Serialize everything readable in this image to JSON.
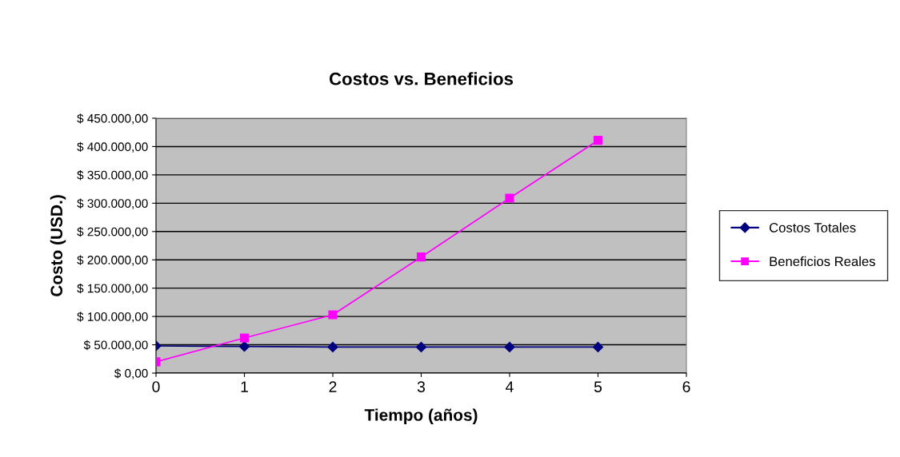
{
  "chart_data": {
    "type": "line",
    "title": "Costos vs. Beneficios",
    "xlabel": "Tiempo (años)",
    "ylabel": "Costo (USD.)",
    "x": [
      0,
      1,
      2,
      3,
      4,
      5
    ],
    "series": [
      {
        "name": "Costos Totales",
        "color": "#000080",
        "marker": "diamond",
        "values": [
          48000,
          47000,
          46000,
          46000,
          46000,
          46000
        ]
      },
      {
        "name": "Beneficios Reales",
        "color": "#ff00ff",
        "marker": "square",
        "values": [
          20000,
          62000,
          103000,
          205000,
          309000,
          411000
        ]
      }
    ],
    "xlim": [
      0,
      6
    ],
    "xticks": [
      0,
      1,
      2,
      3,
      4,
      5,
      6
    ],
    "ylim": [
      0,
      450000
    ],
    "yticks": [
      {
        "value": 0,
        "label": "$ 0,00"
      },
      {
        "value": 50000,
        "label": "$ 50.000,00"
      },
      {
        "value": 100000,
        "label": "$ 100.000,00"
      },
      {
        "value": 150000,
        "label": "$ 150.000,00"
      },
      {
        "value": 200000,
        "label": "$ 200.000,00"
      },
      {
        "value": 250000,
        "label": "$ 250.000,00"
      },
      {
        "value": 300000,
        "label": "$ 300.000,00"
      },
      {
        "value": 350000,
        "label": "$ 350.000,00"
      },
      {
        "value": 400000,
        "label": "$ 400.000,00"
      },
      {
        "value": 450000,
        "label": "$ 450.000,00"
      }
    ],
    "grid": "y",
    "legend": "right",
    "line_style": "solid"
  }
}
